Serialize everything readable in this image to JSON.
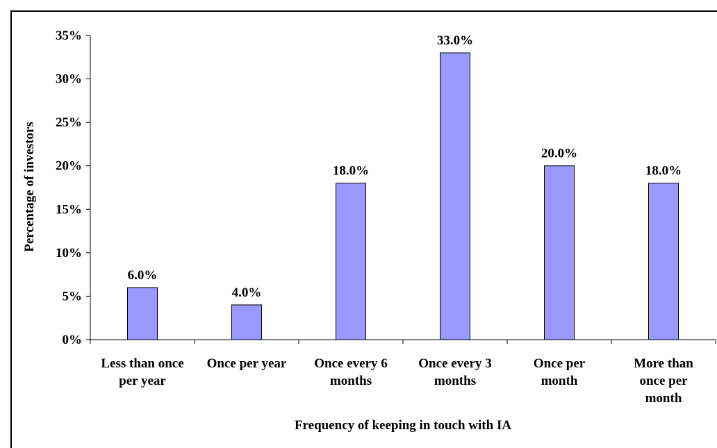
{
  "chart_data": {
    "type": "bar",
    "categories": [
      [
        "Less than once",
        "per year"
      ],
      [
        "Once per year"
      ],
      [
        "Once every 6",
        "months"
      ],
      [
        "Once every 3",
        "months"
      ],
      [
        "Once per",
        "month"
      ],
      [
        "More than",
        "once per",
        "month"
      ]
    ],
    "values": [
      6.0,
      4.0,
      18.0,
      33.0,
      20.0,
      18.0
    ],
    "data_labels": [
      "6.0%",
      "4.0%",
      "18.0%",
      "33.0%",
      "20.0%",
      "18.0%"
    ],
    "ylim": [
      0,
      35
    ],
    "yticks": [
      0,
      5,
      10,
      15,
      20,
      25,
      30,
      35
    ],
    "ytick_labels": [
      "0%",
      "5%",
      "10%",
      "15%",
      "20%",
      "25%",
      "30%",
      "35%"
    ],
    "xlabel": "Frequency of keeping in touch with IA",
    "ylabel": "Percentage of investors",
    "title": "",
    "grid": false,
    "bar_color": "#9999ff",
    "bar_edge_color": "#000000"
  }
}
